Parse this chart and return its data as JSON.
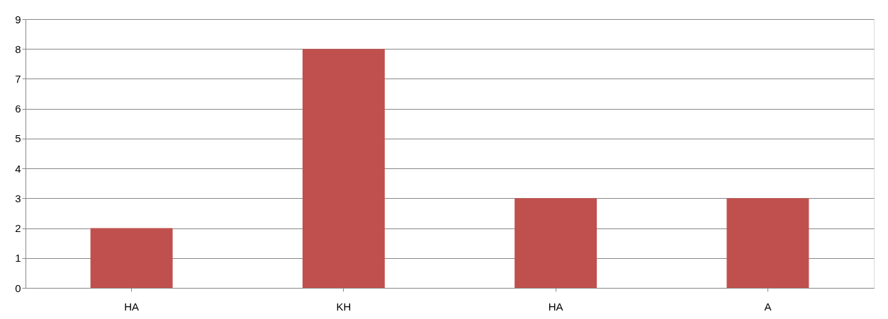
{
  "chart_data": {
    "type": "bar",
    "categories": [
      "HA",
      "KH",
      "HA",
      "A"
    ],
    "values": [
      2,
      8,
      3,
      3
    ],
    "color": "#c0504d",
    "ylim": [
      0,
      9
    ],
    "yticks": [
      0,
      1,
      2,
      3,
      4,
      5,
      6,
      7,
      8,
      9
    ],
    "grid": "y"
  }
}
